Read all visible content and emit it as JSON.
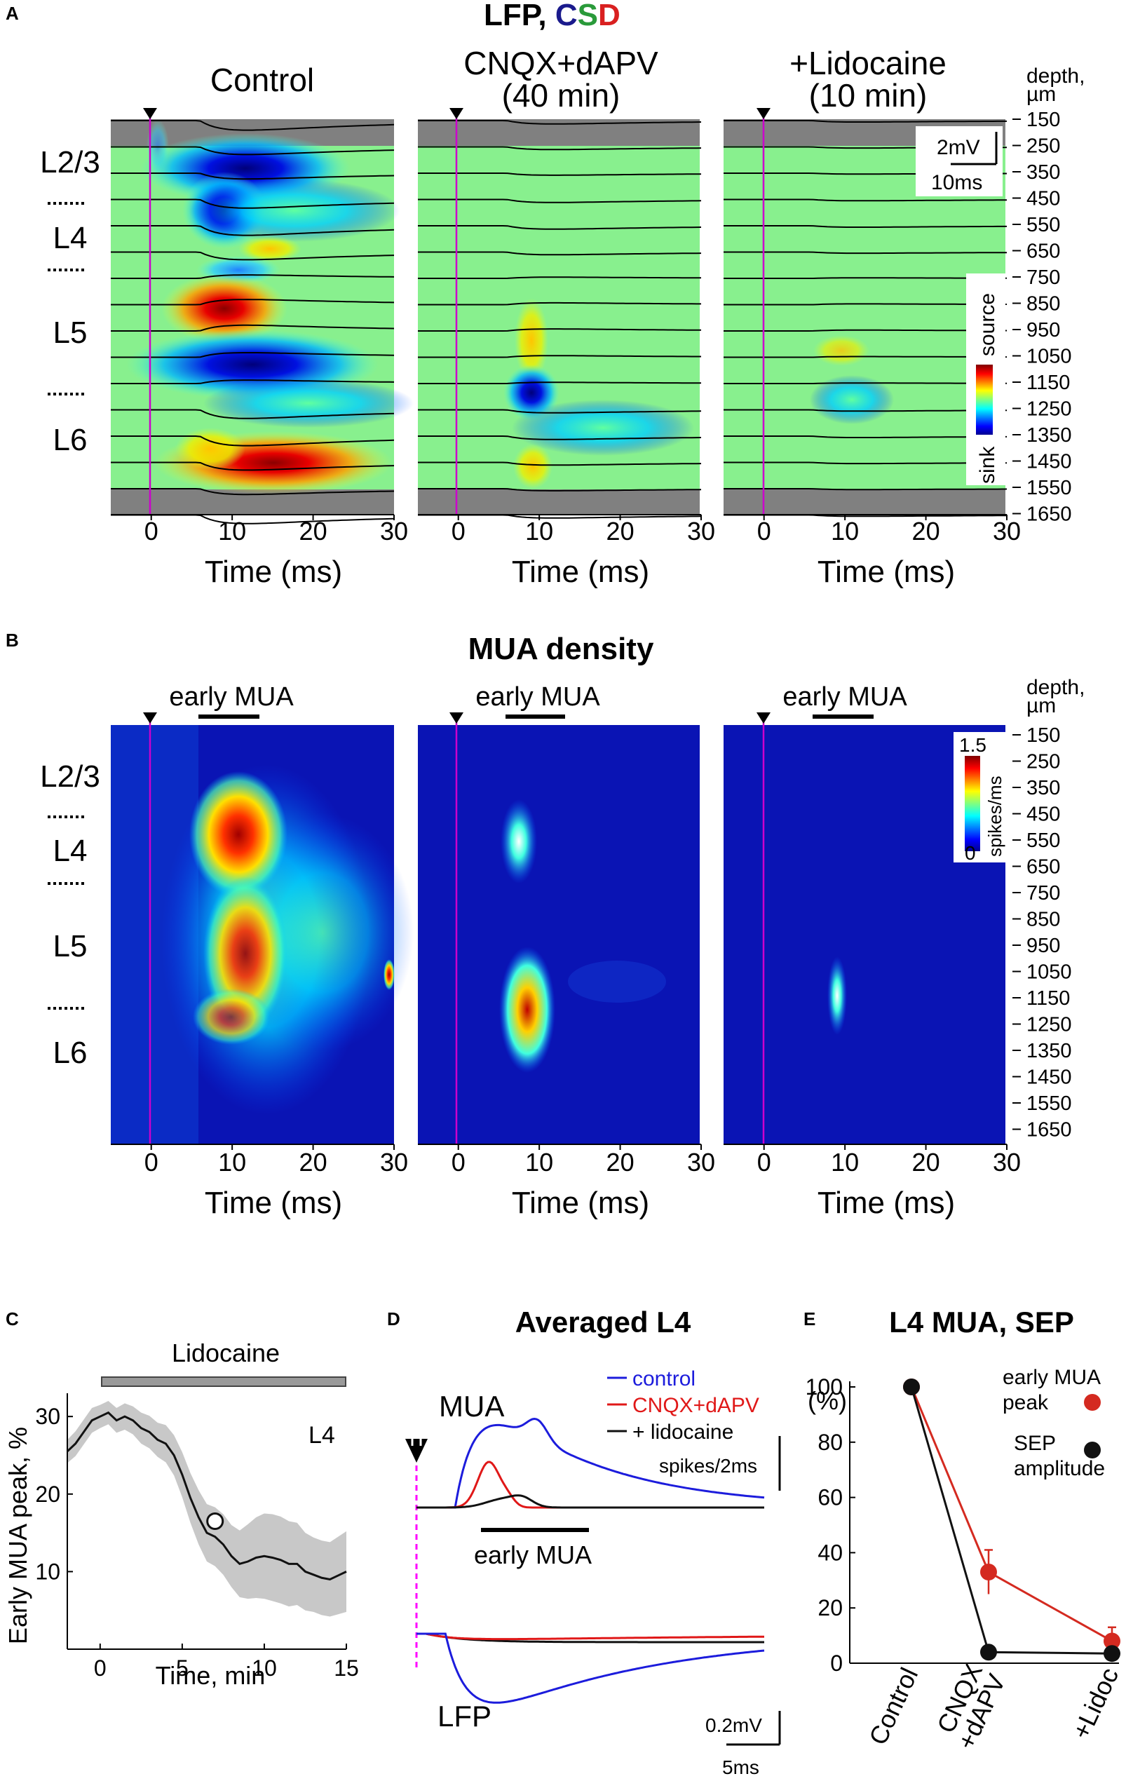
{
  "panelA": {
    "letter": "A",
    "title_main": "LFP, ",
    "title_c": "C",
    "title_s": "S",
    "title_d": "D",
    "colors": {
      "c": "#1a1a8c",
      "s": "#2a9a3a",
      "d": "#d92020"
    },
    "conditions": [
      {
        "line1": "Control",
        "line2": ""
      },
      {
        "line1": "CNQX+dAPV",
        "line2": "(40 min)"
      },
      {
        "line1": "+Lidocaine",
        "line2": "(10 min)"
      }
    ],
    "scalebar_mv": "2mV",
    "scalebar_ms": "10ms",
    "colorbar_top": "source",
    "colorbar_bottom": "sink"
  },
  "panelB": {
    "letter": "B",
    "title": "MUA density",
    "early_label": "early MUA",
    "colorbar_max": "1.5",
    "colorbar_min": "0",
    "colorbar_unit": "spikes/ms"
  },
  "layers": [
    "L2/3",
    "L4",
    "L5",
    "L6"
  ],
  "depth_header_1": "depth,",
  "depth_header_2": "µm",
  "depths": [
    "150",
    "250",
    "350",
    "450",
    "550",
    "650",
    "750",
    "850",
    "950",
    "1050",
    "1150",
    "1250",
    "1350",
    "1450",
    "1550",
    "1650"
  ],
  "time_ticks": [
    "0",
    "10",
    "20",
    "30"
  ],
  "time_axis_label": "Time (ms)",
  "panelC": {
    "letter": "C",
    "bar_label": "Lidocaine",
    "inset_label": "L4",
    "ylabel": "Early MUA peak, %",
    "xlabel": "Time, min",
    "xticks": [
      "0",
      "5",
      "10",
      "15"
    ],
    "yticks": [
      "10",
      "20",
      "30"
    ],
    "chart_data": {
      "type": "line",
      "x": [
        -2,
        -1.5,
        -1,
        -0.5,
        0,
        0.5,
        1,
        1.5,
        2,
        2.5,
        3,
        3.5,
        4,
        4.5,
        5,
        5.5,
        6,
        6.5,
        7,
        7.5,
        8,
        8.5,
        9,
        9.5,
        10,
        10.5,
        11,
        11.5,
        12,
        12.5,
        13,
        13.5,
        14,
        14.5,
        15
      ],
      "y": [
        25.5,
        26.5,
        28,
        29.5,
        30,
        30.5,
        29.5,
        30,
        29.5,
        28.5,
        28,
        27,
        26.5,
        25,
        22.5,
        19.5,
        17,
        15,
        14.5,
        13.5,
        12,
        11,
        11.3,
        11.8,
        12,
        11.8,
        11.5,
        11,
        11,
        10,
        9.6,
        9.2,
        9,
        9.5,
        10
      ],
      "band_half_width": [
        1.5,
        1.6,
        1.6,
        1.6,
        1.5,
        1.5,
        1.6,
        1.7,
        1.8,
        2,
        2.1,
        2.2,
        2.4,
        2.6,
        2.9,
        3.2,
        3.5,
        3.7,
        3.8,
        3.9,
        4,
        4.3,
        4.8,
        5.2,
        5.5,
        5.6,
        5.6,
        5.5,
        5.3,
        5,
        4.8,
        4.8,
        4.8,
        5,
        5.2
      ],
      "marker": {
        "x": 7,
        "y": 16.5
      },
      "xlim": [
        -2,
        15
      ],
      "ylim": [
        0,
        33
      ]
    }
  },
  "panelD": {
    "letter": "D",
    "title": "Averaged L4",
    "mua_label": "MUA",
    "lfp_label": "LFP",
    "early_label": "early MUA",
    "legend": [
      {
        "label": "control",
        "color": "#1c1cdc"
      },
      {
        "label": "CNQX+dAPV",
        "color": "#e01818"
      },
      {
        "label": "+ lidocaine",
        "color": "#111111"
      }
    ],
    "scale_spikes": "spikes/2ms",
    "scale_mv": "0.2mV",
    "scale_ms": "5ms"
  },
  "panelE": {
    "letter": "E",
    "title": "L4 MUA, SEP",
    "ylabel": "(%)",
    "yticks": [
      "0",
      "20",
      "40",
      "60",
      "80",
      "100"
    ],
    "legend_mua_1": "early MUA",
    "legend_mua_2": "peak",
    "legend_sep_1": "SEP",
    "legend_sep_2": "amplitude",
    "chart_data": {
      "type": "line",
      "categories": [
        "Control",
        "CNQX+dAPV",
        "+Lidoc"
      ],
      "category_lines": [
        [
          "Control"
        ],
        [
          "CNQX",
          "+dAPV"
        ],
        [
          "+Lidoc"
        ]
      ],
      "series": [
        {
          "name": "early MUA peak",
          "color": "#d42a20",
          "values": [
            100,
            33,
            8
          ],
          "err": [
            0,
            8,
            5
          ]
        },
        {
          "name": "SEP amplitude",
          "color": "#111111",
          "values": [
            100,
            4,
            3.5
          ],
          "err": [
            0,
            1.5,
            1.5
          ]
        }
      ],
      "ylim": [
        0,
        100
      ]
    }
  }
}
